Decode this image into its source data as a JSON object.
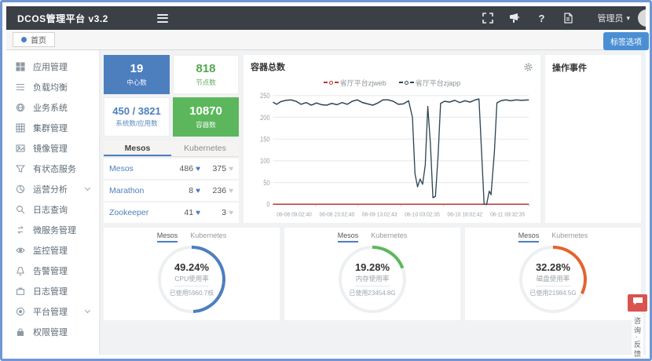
{
  "colors": {
    "accent_blue": "#4d7fbf",
    "green": "#5cb75c",
    "orange": "#e4632e",
    "navbar_bg": "#3b4046",
    "frame": "#6e97d4",
    "feedback_red": "#d9534f",
    "series_red": "#c23531",
    "series_dark": "#2f4554"
  },
  "navbar": {
    "logo": "DCOS管理平台 v3.2",
    "user_name": "管理员",
    "user_caret": "▾",
    "help_glyph": "?"
  },
  "tabstrip": {
    "home_tab": "首页",
    "tag_button": "标签选项"
  },
  "sidebar": {
    "items": [
      {
        "label": "应用管理",
        "icon": "apps"
      },
      {
        "label": "负载均衡",
        "icon": "balance"
      },
      {
        "label": "业务系统",
        "icon": "business"
      },
      {
        "label": "集群管理",
        "icon": "cluster"
      },
      {
        "label": "镜像管理",
        "icon": "image"
      },
      {
        "label": "有状态服务",
        "icon": "stateful"
      },
      {
        "label": "运营分析",
        "icon": "analysis",
        "expandable": true
      },
      {
        "label": "日志查询",
        "icon": "search"
      },
      {
        "label": "微服务管理",
        "icon": "micro"
      },
      {
        "label": "监控管理",
        "icon": "monitor"
      },
      {
        "label": "告警管理",
        "icon": "alert"
      },
      {
        "label": "日志管理",
        "icon": "log"
      },
      {
        "label": "平台管理",
        "icon": "platform",
        "expandable": true
      },
      {
        "label": "权限管理",
        "icon": "permission"
      }
    ]
  },
  "stats": [
    {
      "value": "19",
      "label": "中心数",
      "variant": "blue-solid"
    },
    {
      "value": "818",
      "label": "节点数",
      "variant": "green-text"
    },
    {
      "value": "450 / 3821",
      "label": "系统数/应用数",
      "variant": "blue-text"
    },
    {
      "value": "10870",
      "label": "容器数",
      "variant": "green-solid"
    }
  ],
  "cluster": {
    "tabs": [
      "Mesos",
      "Kubernetes"
    ],
    "active_tab": "Mesos",
    "rows": [
      {
        "name": "Mesos",
        "healthy": "486",
        "unhealthy": "375"
      },
      {
        "name": "Marathon",
        "healthy": "8",
        "unhealthy": "236"
      },
      {
        "name": "Zookeeper",
        "healthy": "41",
        "unhealthy": "3"
      }
    ]
  },
  "chart_data": {
    "type": "line",
    "title": "容器总数",
    "legend_position": "top",
    "grid": true,
    "ylim": [
      0,
      250
    ],
    "yticks": [
      0,
      50,
      100,
      150,
      200,
      250
    ],
    "x_ticks": [
      "06-08 09:02:40",
      "06-08 23:02:40",
      "06-09 13:02:43",
      "06-10 03:02:35",
      "06-10 18:02:42",
      "06-11 09:32:35"
    ],
    "series": [
      {
        "name": "省厅平台zjweb",
        "color": "#c23531",
        "points": [
          [
            0,
            0
          ],
          [
            100,
            0
          ]
        ]
      },
      {
        "name": "省厅平台zjapp",
        "color": "#2f4554",
        "points": [
          [
            0,
            235
          ],
          [
            1.5,
            230
          ],
          [
            3,
            236
          ],
          [
            5,
            239
          ],
          [
            7,
            240
          ],
          [
            9,
            237
          ],
          [
            11,
            230
          ],
          [
            13,
            234
          ],
          [
            15,
            228
          ],
          [
            17,
            233
          ],
          [
            19,
            229
          ],
          [
            21,
            228
          ],
          [
            23,
            232
          ],
          [
            25,
            229
          ],
          [
            27,
            234
          ],
          [
            29,
            230
          ],
          [
            31,
            237
          ],
          [
            33,
            240
          ],
          [
            35,
            234
          ],
          [
            37,
            231
          ],
          [
            39,
            228
          ],
          [
            41,
            233
          ],
          [
            43,
            240
          ],
          [
            45,
            240
          ],
          [
            47,
            237
          ],
          [
            49,
            230
          ],
          [
            51,
            231
          ],
          [
            53,
            238
          ],
          [
            54.5,
            200
          ],
          [
            55.5,
            70
          ],
          [
            56.5,
            40
          ],
          [
            57.5,
            58
          ],
          [
            58.5,
            46
          ],
          [
            59.5,
            90
          ],
          [
            60.5,
            225
          ],
          [
            61.5,
            140
          ],
          [
            62.5,
            15
          ],
          [
            63.5,
            18
          ],
          [
            64.5,
            110
          ],
          [
            65.5,
            232
          ],
          [
            67,
            237
          ],
          [
            69,
            235
          ],
          [
            71,
            239
          ],
          [
            73,
            234
          ],
          [
            75,
            238
          ],
          [
            77,
            235
          ],
          [
            79,
            240
          ],
          [
            80.5,
            242
          ],
          [
            81.5,
            120
          ],
          [
            82.5,
            0
          ],
          [
            83.5,
            0
          ],
          [
            84.5,
            30
          ],
          [
            85.2,
            22
          ],
          [
            86.5,
            120
          ],
          [
            87.5,
            233
          ],
          [
            89,
            238
          ],
          [
            91,
            240
          ],
          [
            93,
            238
          ],
          [
            95,
            240
          ],
          [
            97,
            239
          ],
          [
            100,
            240
          ]
        ]
      }
    ]
  },
  "events": {
    "title": "操作事件"
  },
  "gauges": [
    {
      "tabs": [
        "Mesos",
        "Kubernetes"
      ],
      "percent": 49.24,
      "percent_label": "49.24%",
      "metric": "CPU使用率",
      "used": "已使用5960.7核",
      "color": "#4d7fbf"
    },
    {
      "tabs": [
        "Mesos",
        "Kubernetes"
      ],
      "percent": 19.28,
      "percent_label": "19.28%",
      "metric": "内存使用率",
      "used": "已使用23454.8G",
      "color": "#5cb75c"
    },
    {
      "tabs": [
        "Mesos",
        "Kubernetes"
      ],
      "percent": 32.28,
      "percent_label": "32.28%",
      "metric": "磁盘使用率",
      "used": "已使用21984.5G",
      "color": "#e4632e"
    }
  ],
  "feedback": {
    "label": "咨询·反馈"
  }
}
